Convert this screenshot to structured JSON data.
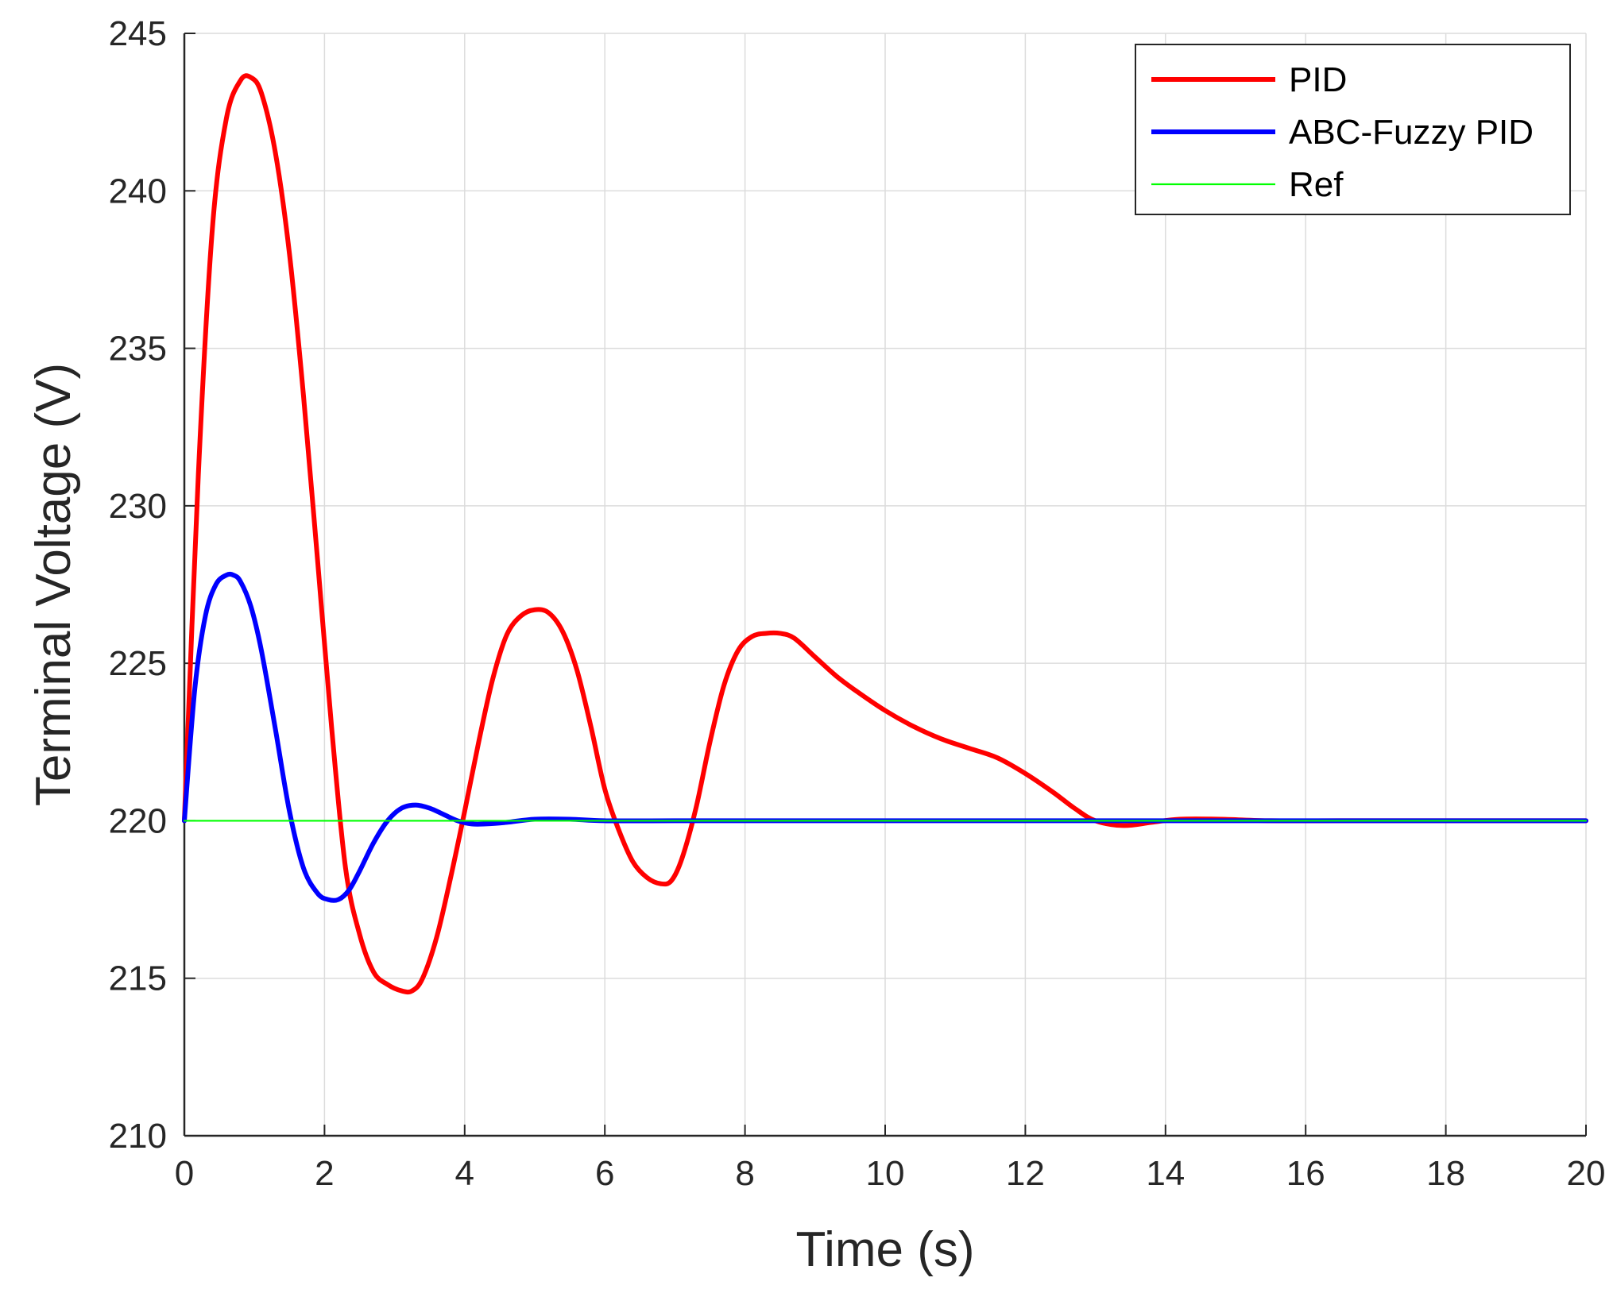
{
  "chart_data": {
    "type": "line",
    "xlabel": "Time (s)",
    "ylabel": "Terminal Voltage (V)",
    "xlim": [
      0,
      20
    ],
    "ylim": [
      210,
      245
    ],
    "xticks": [
      0,
      2,
      4,
      6,
      8,
      10,
      12,
      14,
      16,
      18,
      20
    ],
    "yticks": [
      210,
      215,
      220,
      225,
      230,
      235,
      240,
      245
    ],
    "grid": true,
    "legend_position": "top-right",
    "series": [
      {
        "name": "PID",
        "color": "#ff0000",
        "line_weight": "thick",
        "x": [
          0,
          0.2,
          0.4,
          0.6,
          0.8,
          0.95,
          1.1,
          1.3,
          1.5,
          1.7,
          1.9,
          2.1,
          2.3,
          2.5,
          2.7,
          2.9,
          3.1,
          3.25,
          3.4,
          3.6,
          3.8,
          4.0,
          4.2,
          4.4,
          4.6,
          4.8,
          5.0,
          5.2,
          5.4,
          5.6,
          5.8,
          6.0,
          6.2,
          6.4,
          6.6,
          6.8,
          6.95,
          7.1,
          7.3,
          7.5,
          7.7,
          7.9,
          8.1,
          8.3,
          8.5,
          8.7,
          9.0,
          9.3,
          9.6,
          10.0,
          10.4,
          10.8,
          11.2,
          11.6,
          12.0,
          12.4,
          12.7,
          13.0,
          13.4,
          13.8,
          14.2,
          14.8,
          15.5,
          16.5,
          18,
          20
        ],
        "y": [
          220,
          231,
          238.8,
          242.3,
          243.5,
          243.6,
          243.1,
          241.2,
          238.0,
          233.5,
          228.3,
          223.0,
          218.5,
          216.4,
          215.2,
          214.8,
          214.6,
          214.6,
          215.0,
          216.3,
          218.2,
          220.3,
          222.5,
          224.5,
          225.9,
          226.5,
          226.7,
          226.6,
          226.0,
          224.8,
          223.0,
          221.0,
          219.7,
          218.7,
          218.2,
          218.0,
          218.1,
          218.8,
          220.4,
          222.5,
          224.3,
          225.4,
          225.85,
          225.95,
          225.95,
          225.8,
          225.2,
          224.6,
          224.1,
          223.5,
          223.0,
          222.6,
          222.3,
          222.0,
          221.5,
          220.9,
          220.4,
          220.0,
          219.85,
          219.95,
          220.05,
          220.05,
          220.0,
          220.0,
          220.0,
          220.0
        ]
      },
      {
        "name": "ABC-Fuzzy PID",
        "color": "#0000ff",
        "line_weight": "thick",
        "x": [
          0,
          0.15,
          0.3,
          0.45,
          0.6,
          0.7,
          0.8,
          0.95,
          1.1,
          1.3,
          1.5,
          1.7,
          1.9,
          2.05,
          2.2,
          2.35,
          2.5,
          2.7,
          2.9,
          3.1,
          3.3,
          3.5,
          3.7,
          3.9,
          4.1,
          4.3,
          4.6,
          5.0,
          5.5,
          6.0,
          7.0,
          8.0,
          10.0,
          14.0,
          20.0
        ],
        "y": [
          220,
          224.2,
          226.5,
          227.5,
          227.8,
          227.8,
          227.6,
          226.8,
          225.4,
          222.9,
          220.3,
          218.5,
          217.7,
          217.5,
          217.5,
          217.8,
          218.4,
          219.3,
          220.0,
          220.4,
          220.5,
          220.4,
          220.2,
          220.0,
          219.9,
          219.9,
          219.95,
          220.05,
          220.05,
          220.0,
          220.0,
          220.0,
          220.0,
          220.0,
          220.0
        ]
      },
      {
        "name": "Ref",
        "color": "#00ff00",
        "line_weight": "thin",
        "x": [
          0,
          20
        ],
        "y": [
          220,
          220
        ]
      }
    ]
  }
}
